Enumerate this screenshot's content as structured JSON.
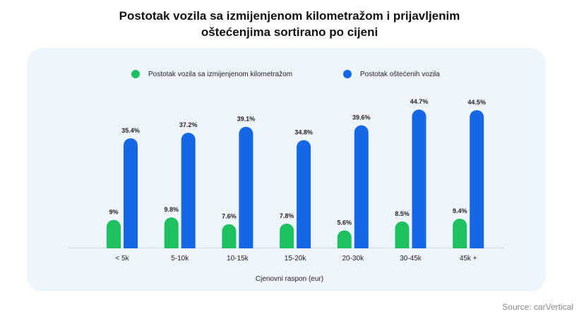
{
  "colors": {
    "green": "#1ec15f",
    "blue": "#1667e6",
    "panel": "#eef5fd",
    "baseline": "#cfd8e3"
  },
  "chart_data": {
    "type": "bar",
    "title_lines": [
      "Postotak vozila sa izmijenjenom kilometražom i prijavljenim",
      "oštećenjima sortirano po cijeni"
    ],
    "xlabel": "Cjenovni raspon (eur)",
    "ylabel": "",
    "ylim": [
      0,
      45
    ],
    "grid": false,
    "legend_position": "top",
    "categories": [
      "< 5k",
      "5-10k",
      "10-15k",
      "15-20k",
      "20-30k",
      "30-45k",
      "45k +"
    ],
    "series": [
      {
        "name": "Postotak vozila sa izmijenjenom kilometražom",
        "color": "#1ec15f",
        "values": [
          9,
          9.8,
          7.6,
          7.8,
          5.6,
          8.5,
          9.4
        ],
        "labels": [
          "9%",
          "9.8%",
          "7.6%",
          "7.8%",
          "5.6%",
          "8.5%",
          "9.4%"
        ]
      },
      {
        "name": "Postotak oštećenih vozila",
        "color": "#1667e6",
        "values": [
          35.4,
          37.2,
          39.1,
          34.8,
          39.6,
          44.7,
          44.5
        ],
        "labels": [
          "35.4%",
          "37.2%",
          "39.1%",
          "34.8%",
          "39.6%",
          "44.7%",
          "44.5%"
        ]
      }
    ]
  },
  "source": "Source: carVertical"
}
